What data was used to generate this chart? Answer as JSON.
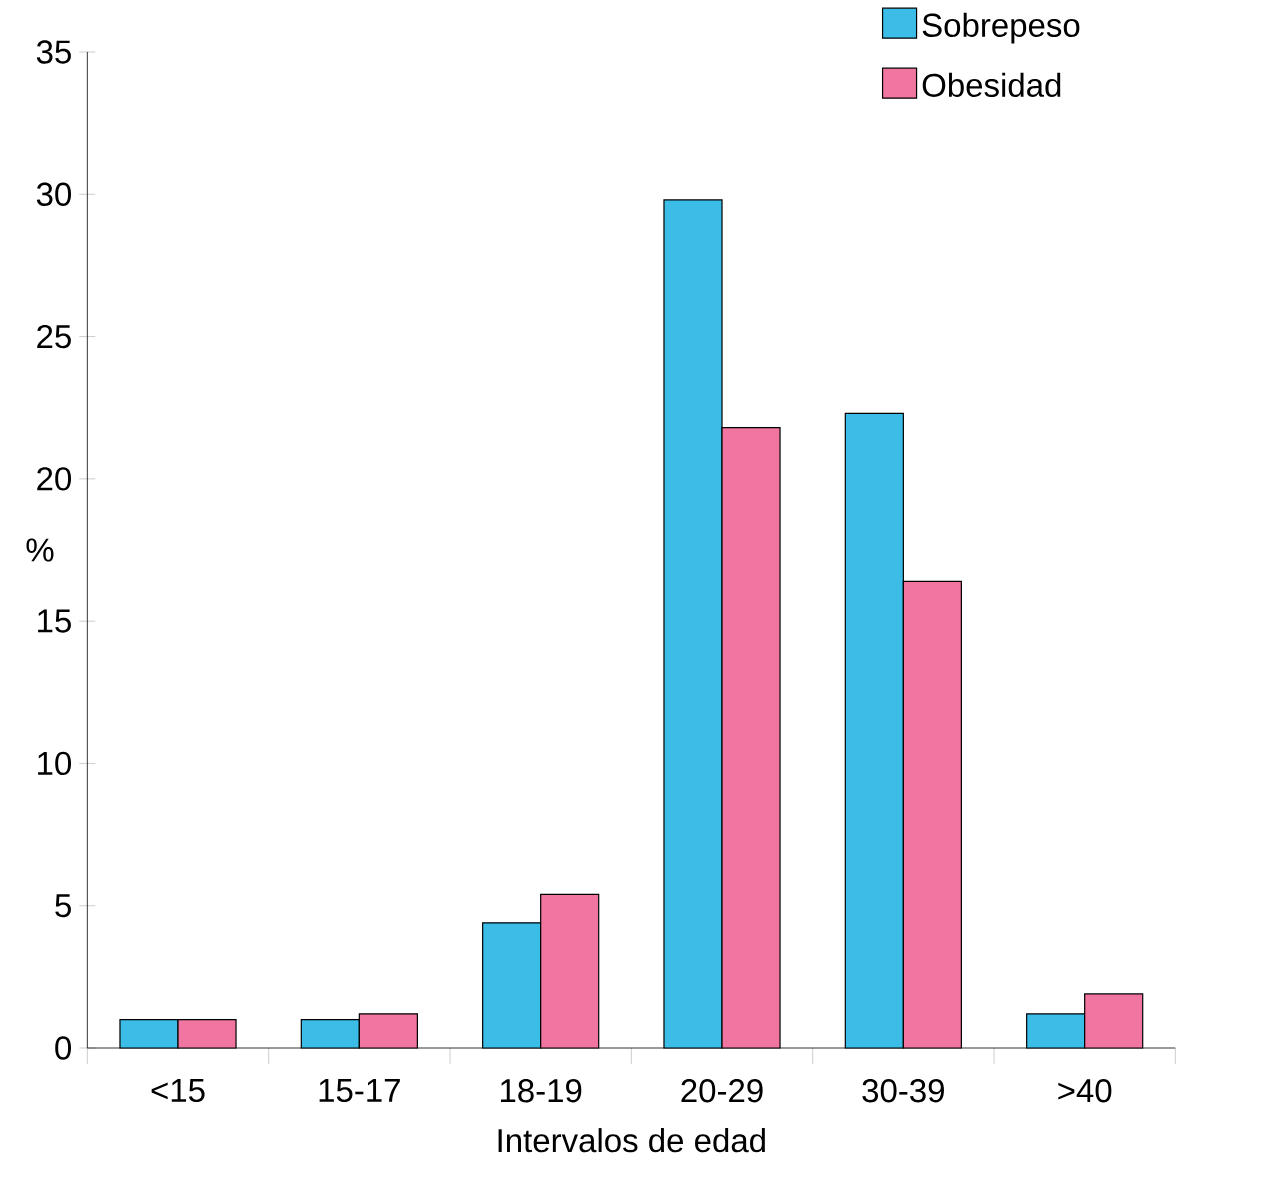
{
  "chart_data": {
    "type": "bar",
    "xlabel": "Intervalos de edad",
    "ylabel": "%",
    "categories": [
      "<15",
      "15-17",
      "18-19",
      "20-29",
      "30-39",
      ">40"
    ],
    "series": [
      {
        "name": "Sobrepeso",
        "color": "#3bbde8",
        "values": [
          1.0,
          1.0,
          4.4,
          29.8,
          22.3,
          1.2
        ]
      },
      {
        "name": "Obesidad",
        "color": "#f075a0",
        "values": [
          1.0,
          1.2,
          5.4,
          21.8,
          16.4,
          1.9
        ]
      }
    ],
    "ylim": [
      0,
      35
    ],
    "yticks": [
      0,
      5,
      10,
      15,
      20,
      25,
      30,
      35
    ],
    "legend": "top right"
  }
}
